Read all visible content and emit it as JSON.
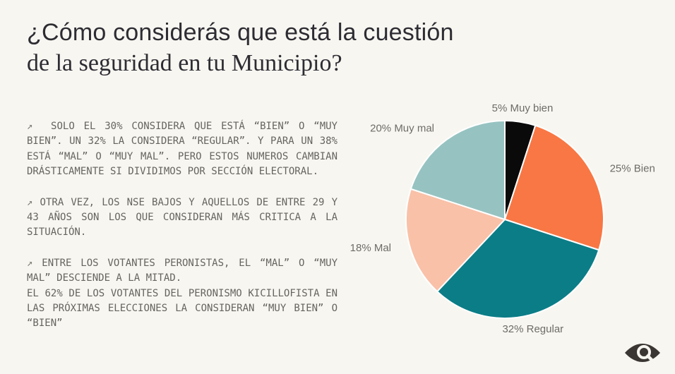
{
  "title": {
    "line1": "¿Cómo considerás que está la cuestión",
    "line2": "de la seguridad en tu Municipio?"
  },
  "bullets": [
    {
      "arrow": "↗",
      "text": "  SOLO EL 30% CONSIDERA QUE ESTÁ “BIEN” O “MUY BIEN”. UN 32% LA CONSIDERA “REGULAR”. Y PARA UN 38% ESTÁ “MAL” O “MUY MAL”. PERO ESTOS NUMEROS CAMBIAN DRÁSTICAMENTE SI DIVIDIMOS POR SECCIÓN ELECTORAL."
    },
    {
      "arrow": "↗",
      "text": " OTRA VEZ, LOS NSE BAJOS Y AQUELLOS DE ENTRE 29 Y 43 AÑOS SON LOS QUE CONSIDERAN MÁS CRITICA A LA SITUACIÓN."
    },
    {
      "arrow": "↗",
      "text": " ENTRE LOS VOTANTES PERONISTAS, EL “MAL” O “MUY MAL” DESCIENDE A LA MITAD.\nEL 62% DE LOS VOTANTES DEL PERONISMO KICILLOFISTA EN LAS PRÓXIMAS ELECCIONES LA CONSIDERAN “MUY BIEN” O “BIEN”"
    }
  ],
  "chart_data": {
    "type": "pie",
    "title": "",
    "categories": [
      "Muy bien",
      "Bien",
      "Regular",
      "Mal",
      "Muy mal"
    ],
    "values": [
      5,
      25,
      32,
      18,
      20
    ],
    "slices": [
      {
        "label": "Muy bien",
        "value": 5,
        "display_label": "5% Muy bien",
        "color": "#0A0A0A"
      },
      {
        "label": "Bien",
        "value": 25,
        "display_label": "25% Bien",
        "color": "#F87744"
      },
      {
        "label": "Regular",
        "value": 32,
        "display_label": "32% Regular",
        "color": "#0B7D87"
      },
      {
        "label": "Mal",
        "value": 18,
        "display_label": "18% Mal",
        "color": "#F9C1A8"
      },
      {
        "label": "Muy mal",
        "value": 20,
        "display_label": "20% Muy mal",
        "color": "#96C3C1"
      }
    ],
    "start_angle_deg": 0,
    "direction": "clockwise",
    "label_position": "outside",
    "label_color": "#6E6C67",
    "separator_color": "#FFFFFF"
  },
  "logo": {
    "name": "eye-lens-logo",
    "color": "#3A3633"
  }
}
